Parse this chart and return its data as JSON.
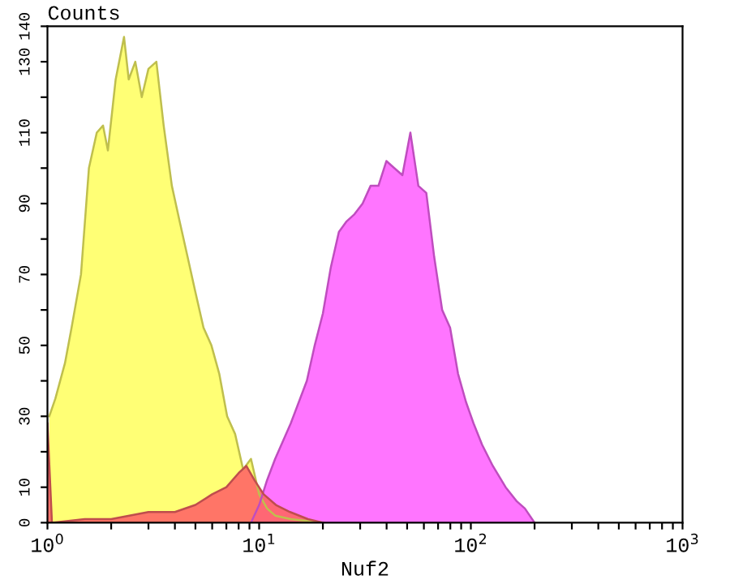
{
  "chart_data": {
    "type": "area",
    "ylabel": "Counts",
    "xlabel": "Nuf2",
    "log": "x",
    "xlim": [
      1,
      1000
    ],
    "ylim": [
      0,
      140
    ],
    "xticks": [
      {
        "value": 1,
        "label": "10$^{0}$"
      },
      {
        "value": 2,
        "label": null
      },
      {
        "value": 3,
        "label": null
      },
      {
        "value": 4,
        "label": null
      },
      {
        "value": 5,
        "label": null
      },
      {
        "value": 6,
        "label": null
      },
      {
        "value": 7,
        "label": null
      },
      {
        "value": 8,
        "label": null
      },
      {
        "value": 9,
        "label": null
      },
      {
        "value": 10,
        "label": "10$^{1}$"
      },
      {
        "value": 20,
        "label": null
      },
      {
        "value": 30,
        "label": null
      },
      {
        "value": 40,
        "label": null
      },
      {
        "value": 50,
        "label": null
      },
      {
        "value": 60,
        "label": null
      },
      {
        "value": 70,
        "label": null
      },
      {
        "value": 80,
        "label": null
      },
      {
        "value": 90,
        "label": null
      },
      {
        "value": 100,
        "label": "10$^{2}$"
      },
      {
        "value": 200,
        "label": null
      },
      {
        "value": 300,
        "label": null
      },
      {
        "value": 400,
        "label": null
      },
      {
        "value": 500,
        "label": null
      },
      {
        "value": 600,
        "label": null
      },
      {
        "value": 700,
        "label": null
      },
      {
        "value": 800,
        "label": null
      },
      {
        "value": 900,
        "label": null
      },
      {
        "value": 1000,
        "label": "10$^{3}$"
      }
    ],
    "yticks": [
      0,
      10,
      {
        "value": 20,
        "label": null
      },
      30,
      {
        "value": 40,
        "label": null
      },
      50,
      {
        "value": 60,
        "label": null
      },
      70,
      {
        "value": 80,
        "label": null
      },
      90,
      {
        "value": 100,
        "label": null
      },
      110,
      {
        "value": 120,
        "label": null
      },
      130,
      140
    ],
    "grid": false,
    "series": [
      {
        "color": "#ffff66",
        "x": [
          1.02,
          1.09,
          1.21,
          1.3,
          1.44,
          1.57,
          1.71,
          1.83,
          1.93,
          2.1,
          2.3,
          2.42,
          2.6,
          2.79,
          3.0,
          3.27,
          3.54,
          3.87,
          4.21,
          4.59,
          5.0,
          5.46,
          5.95,
          6.48,
          7.06,
          7.7,
          8.4,
          9.15,
          10.0,
          10.9,
          11.9,
          14.1,
          20.0
        ],
        "values": [
          30,
          35,
          45,
          55,
          70,
          100,
          110,
          112,
          105,
          125,
          137,
          125,
          130,
          120,
          128,
          130,
          112,
          95,
          85,
          75,
          65,
          55,
          50,
          42,
          30,
          25,
          15,
          18,
          8,
          4,
          2,
          1,
          0
        ]
      },
      {
        "color": "#ff66ff",
        "x": [
          9.15,
          10.0,
          10.9,
          11.9,
          14.1,
          16.8,
          18.3,
          20.0,
          21.8,
          23.8,
          25.9,
          28.2,
          30.8,
          33.6,
          36.6,
          39.9,
          43.5,
          47.5,
          51.8,
          56.5,
          61.6,
          67.1,
          73.2,
          79.8,
          87.0,
          94.9,
          103,
          113,
          127,
          146,
          165,
          180,
          200
        ],
        "values": [
          0,
          5,
          12,
          18,
          28,
          40,
          50,
          59,
          72,
          82,
          85,
          87,
          90,
          95,
          95,
          102,
          100,
          98,
          110,
          95,
          93,
          75,
          60,
          55,
          42,
          34,
          28,
          22,
          16,
          10,
          6,
          4,
          0
        ]
      },
      {
        "color": "#ff6666",
        "x": [
          1.0,
          1.05,
          1.5,
          2.0,
          3.0,
          4.0,
          5.0,
          6.0,
          7.0,
          8.0,
          8.7,
          9.5,
          10.5,
          12.0,
          14.0,
          17.0,
          20.0
        ],
        "values": [
          28,
          0,
          1,
          1,
          3,
          3,
          5,
          8,
          10,
          14,
          16,
          12,
          8,
          5,
          3,
          1,
          0
        ]
      }
    ]
  }
}
